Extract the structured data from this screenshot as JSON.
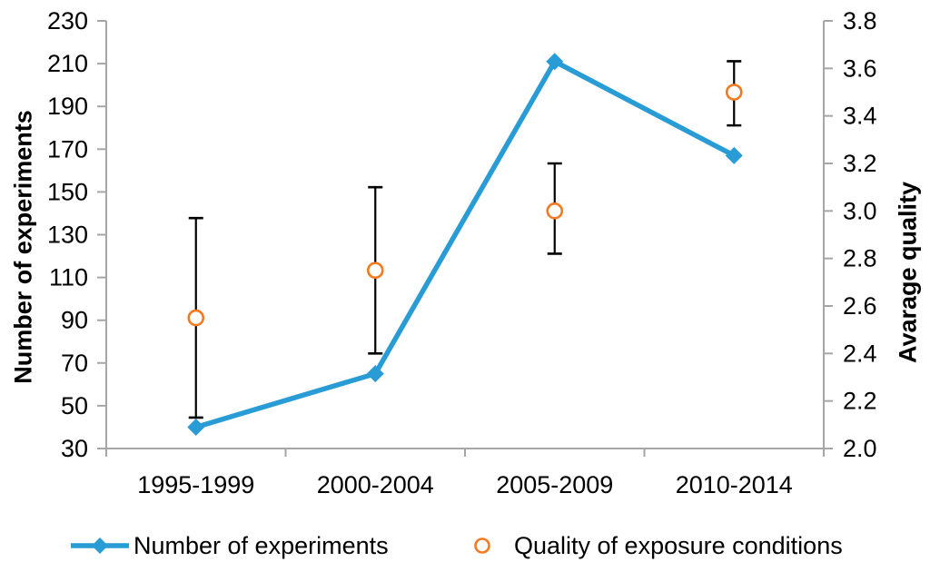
{
  "chart_data": {
    "type": "line",
    "description": "Combination chart: line with diamond markers (left axis) plus open-circle scatter points with vertical error bars (right axis)",
    "categories": [
      "1995-1999",
      "2000-2004",
      "2005-2009",
      "2010-2014"
    ],
    "series": [
      {
        "name": "Number of experiments",
        "axis": "left",
        "type": "line",
        "marker": "diamond",
        "color": "#299BD5",
        "values": [
          40,
          65,
          211,
          167
        ]
      },
      {
        "name": "Quality of exposure conditions",
        "axis": "right",
        "type": "scatter",
        "marker": "open-circle",
        "color": "#F47920",
        "values": [
          2.55,
          2.75,
          3.0,
          3.5
        ],
        "error_low": [
          2.13,
          2.4,
          2.82,
          3.36
        ],
        "error_high": [
          2.97,
          3.1,
          3.2,
          3.63
        ],
        "error_color": "#000000"
      }
    ],
    "left_axis": {
      "label": "Number of experiments",
      "min": 30,
      "max": 230,
      "step": 20,
      "tick_labels": [
        "30",
        "50",
        "70",
        "90",
        "110",
        "130",
        "150",
        "170",
        "190",
        "210",
        "230"
      ]
    },
    "right_axis": {
      "label": "Avarage quality",
      "min": 2.0,
      "max": 3.8,
      "step": 0.2,
      "tick_labels": [
        "2.0",
        "2.2",
        "2.4",
        "2.6",
        "2.8",
        "3.0",
        "3.2",
        "3.4",
        "3.6",
        "3.8"
      ]
    },
    "grid": "off",
    "legend_position": "bottom",
    "axis_color": "#A6A6A6",
    "text_color": "#000000",
    "background_color": "#FFFFFF"
  }
}
